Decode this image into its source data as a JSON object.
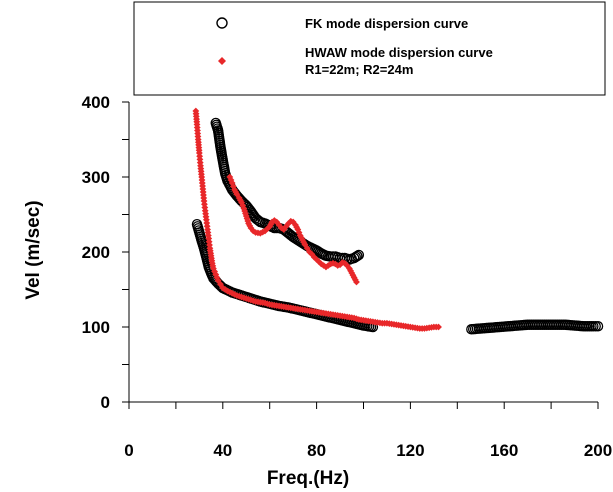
{
  "chart_data": {
    "type": "scatter",
    "xlabel": "Freq.(Hz)",
    "ylabel": "Vel (m/sec)",
    "xlim": [
      0,
      200
    ],
    "ylim": [
      0,
      400
    ],
    "x_ticks": [
      0,
      40,
      80,
      120,
      160,
      200
    ],
    "y_ticks": [
      0,
      100,
      200,
      300,
      400
    ],
    "grid": false,
    "legend_position": "top-right",
    "legend": {
      "fk_label": "FK mode dispersion curve",
      "hwaw_label_line1": "HWAW mode dispersion curve",
      "hwaw_label_line2": "R1=22m; R2=24m"
    },
    "series": [
      {
        "name": "FK mode dispersion curve",
        "marker": "open-circle",
        "color": "#000000",
        "segments": [
          [
            [
              29,
              237
            ],
            [
              30,
              226
            ],
            [
              31,
              215
            ],
            [
              32,
              205
            ],
            [
              33,
              193
            ],
            [
              34,
              180
            ],
            [
              35,
              172
            ],
            [
              36,
              165
            ],
            [
              38,
              158
            ],
            [
              40,
              152
            ],
            [
              44,
              146
            ],
            [
              48,
              142
            ],
            [
              52,
              138
            ],
            [
              56,
              134
            ],
            [
              60,
              131
            ],
            [
              64,
              128
            ],
            [
              68,
              126
            ],
            [
              72,
              123
            ],
            [
              76,
              120
            ],
            [
              80,
              117
            ],
            [
              84,
              114
            ],
            [
              88,
              111
            ],
            [
              92,
              108
            ],
            [
              96,
              105
            ],
            [
              100,
              102
            ],
            [
              104,
              100
            ]
          ],
          [
            [
              37,
              372
            ],
            [
              38,
              362
            ],
            [
              39,
              340
            ],
            [
              40,
              322
            ],
            [
              41,
              305
            ],
            [
              42,
              295
            ],
            [
              44,
              283
            ],
            [
              46,
              275
            ],
            [
              48,
              268
            ],
            [
              50,
              262
            ],
            [
              52,
              254
            ],
            [
              54,
              245
            ],
            [
              56,
              240
            ],
            [
              58,
              238
            ],
            [
              60,
              235
            ],
            [
              62,
              232
            ],
            [
              64,
              232
            ],
            [
              66,
              230
            ],
            [
              68,
              225
            ],
            [
              70,
              220
            ],
            [
              72,
              216
            ],
            [
              74,
              212
            ],
            [
              76,
              208
            ],
            [
              78,
              205
            ],
            [
              80,
              202
            ],
            [
              82,
              198
            ],
            [
              84,
              195
            ],
            [
              86,
              194
            ],
            [
              88,
              194
            ],
            [
              90,
              192
            ],
            [
              92,
              192
            ],
            [
              94,
              190
            ],
            [
              96,
              192
            ],
            [
              98,
              196
            ]
          ],
          [
            [
              146,
              97
            ],
            [
              150,
              98
            ],
            [
              154,
              99
            ],
            [
              158,
              100
            ],
            [
              162,
              101
            ],
            [
              166,
              102
            ],
            [
              170,
              103
            ],
            [
              174,
              103
            ],
            [
              178,
              103
            ],
            [
              182,
              103
            ],
            [
              186,
              103
            ],
            [
              190,
              102
            ],
            [
              194,
              101
            ],
            [
              198,
              101
            ],
            [
              200,
              101
            ]
          ]
        ]
      },
      {
        "name": "HWAW mode dispersion curve",
        "marker": "diamond",
        "color": "#e8282a",
        "segments": [
          [
            [
              28.5,
              388
            ],
            [
              29,
              370
            ],
            [
              29.5,
              350
            ],
            [
              30,
              332
            ],
            [
              30.5,
              315
            ],
            [
              31,
              300
            ],
            [
              31.5,
              284
            ],
            [
              32,
              268
            ],
            [
              32.5,
              255
            ],
            [
              33,
              243
            ],
            [
              33.5,
              230
            ],
            [
              34,
              218
            ],
            [
              34.5,
              205
            ],
            [
              35,
              195
            ],
            [
              35.5,
              185
            ],
            [
              36,
              178
            ],
            [
              37,
              170
            ],
            [
              38,
              162
            ],
            [
              39,
              157
            ],
            [
              40,
              152
            ],
            [
              42,
              148
            ],
            [
              44,
              145
            ],
            [
              46,
              142
            ],
            [
              48,
              140
            ],
            [
              50,
              138
            ],
            [
              52,
              136
            ],
            [
              54,
              134
            ],
            [
              56,
              133
            ],
            [
              58,
              132
            ],
            [
              60,
              130
            ],
            [
              62,
              129
            ],
            [
              64,
              128
            ],
            [
              66,
              127
            ],
            [
              68,
              126
            ],
            [
              70,
              125
            ],
            [
              72,
              124
            ],
            [
              74,
              123
            ],
            [
              76,
              122
            ],
            [
              78,
              121
            ],
            [
              80,
              120
            ],
            [
              82,
              119
            ],
            [
              84,
              118
            ],
            [
              86,
              117
            ],
            [
              88,
              116
            ],
            [
              90,
              115
            ],
            [
              92,
              114
            ],
            [
              94,
              113
            ],
            [
              96,
              112
            ],
            [
              98,
              110
            ],
            [
              100,
              109
            ],
            [
              102,
              108
            ],
            [
              104,
              107
            ],
            [
              106,
              106
            ],
            [
              108,
              105
            ],
            [
              110,
              105
            ],
            [
              112,
              104
            ],
            [
              114,
              103
            ],
            [
              116,
              102
            ],
            [
              118,
              101
            ],
            [
              120,
              100
            ],
            [
              122,
              99
            ],
            [
              124,
              98
            ],
            [
              126,
              98
            ],
            [
              128,
              99
            ],
            [
              130,
              100
            ],
            [
              132,
              100
            ]
          ],
          [
            [
              43,
              300
            ],
            [
              44,
              292
            ],
            [
              45,
              283
            ],
            [
              46,
              277
            ],
            [
              47,
              272
            ],
            [
              48,
              266
            ],
            [
              49,
              258
            ],
            [
              50,
              248
            ],
            [
              51,
              238
            ],
            [
              52,
              232
            ],
            [
              53,
              228
            ],
            [
              54,
              226
            ],
            [
              56,
              225
            ],
            [
              58,
              228
            ],
            [
              60,
              234
            ],
            [
              61,
              240
            ],
            [
              62,
              242
            ],
            [
              63,
              240
            ],
            [
              64,
              236
            ],
            [
              65,
              232
            ],
            [
              66,
              230
            ],
            [
              67,
              234
            ],
            [
              68,
              238
            ],
            [
              69,
              241
            ],
            [
              70,
              240
            ],
            [
              71,
              236
            ],
            [
              72,
              230
            ],
            [
              73,
              222
            ],
            [
              74,
              216
            ],
            [
              75,
              210
            ],
            [
              76,
              205
            ],
            [
              77,
              200
            ],
            [
              78,
              197
            ],
            [
              79,
              193
            ],
            [
              80,
              190
            ],
            [
              81,
              187
            ],
            [
              82,
              184
            ],
            [
              83,
              182
            ],
            [
              84,
              180
            ],
            [
              85,
              182
            ],
            [
              86,
              184
            ],
            [
              87,
              185
            ],
            [
              88,
              184
            ],
            [
              89,
              182
            ],
            [
              90,
              183
            ],
            [
              91,
              186
            ],
            [
              92,
              185
            ],
            [
              93,
              182
            ],
            [
              94,
              178
            ],
            [
              95,
              172
            ],
            [
              96,
              166
            ],
            [
              97,
              160
            ]
          ]
        ]
      }
    ]
  }
}
